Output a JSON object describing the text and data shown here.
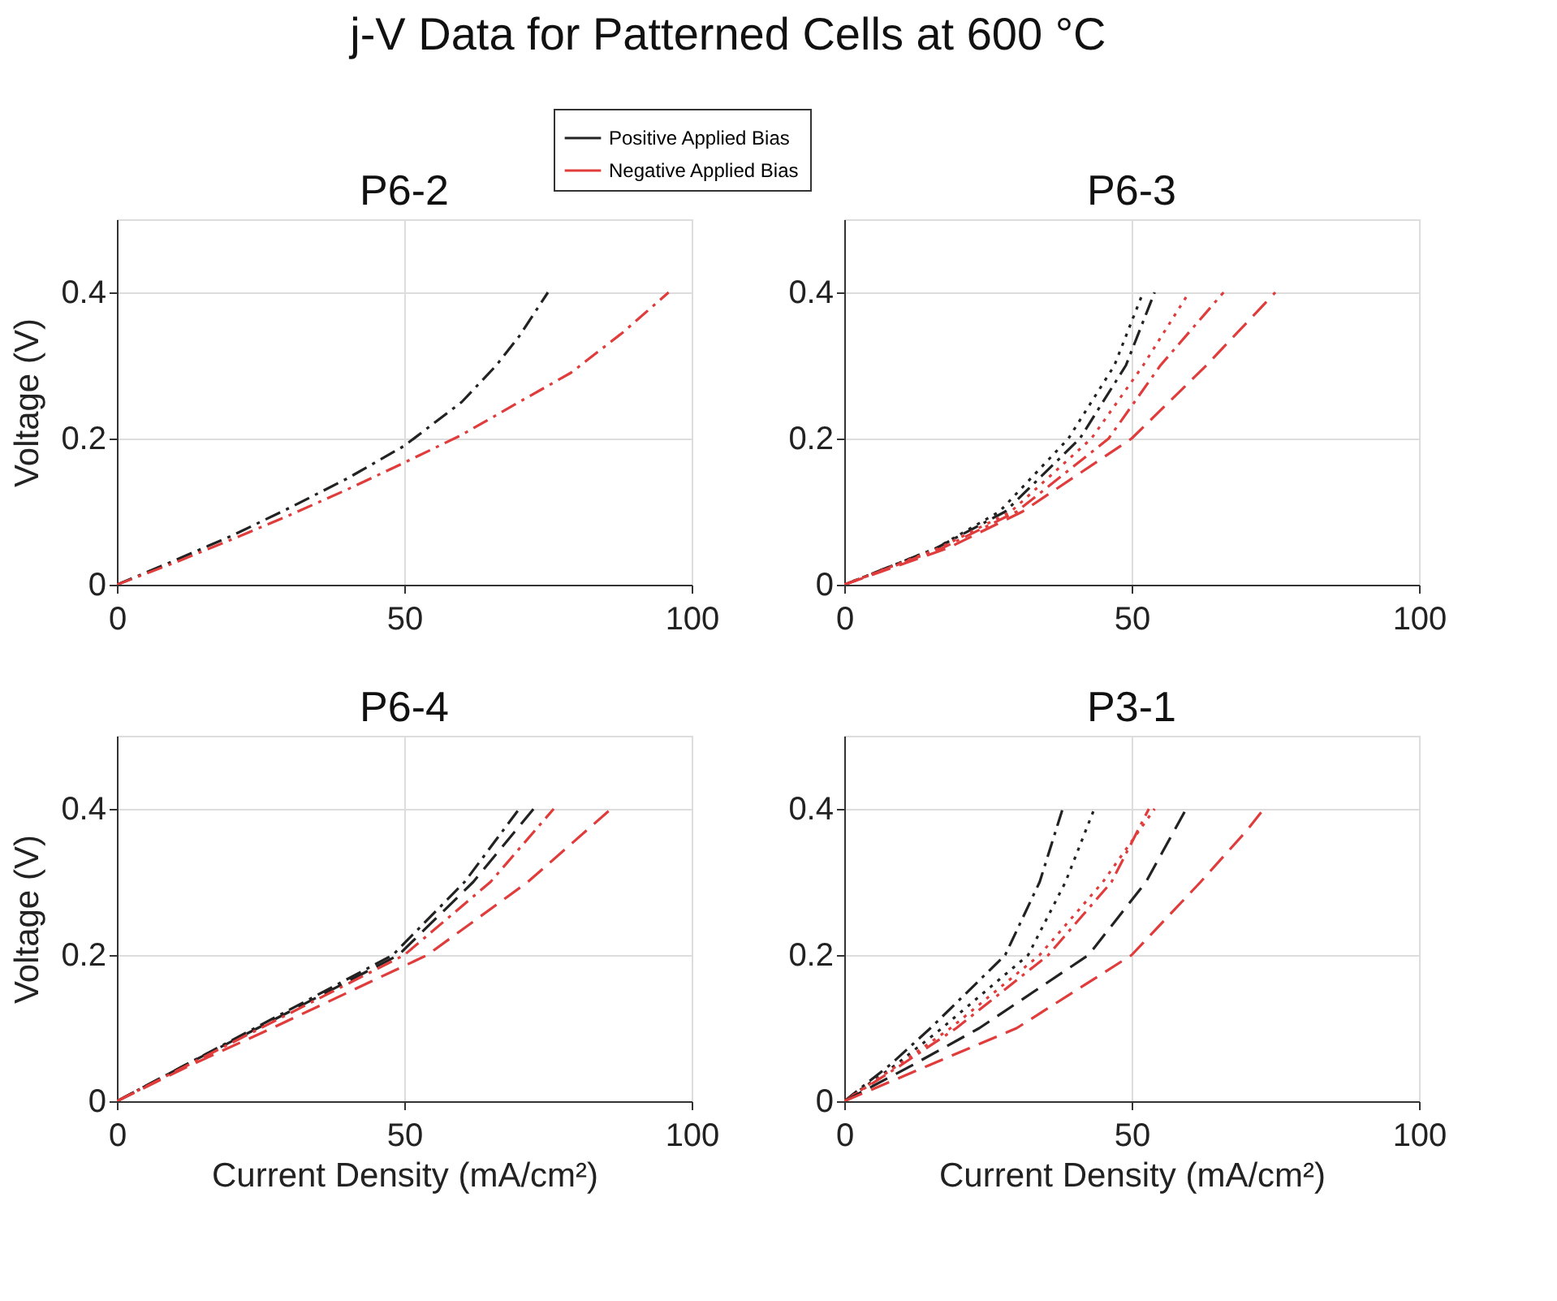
{
  "chart_data": [
    {
      "type": "line",
      "title": "P6-2",
      "ylabel": "Voltage (V)",
      "annotations": [
        "j-V Data for Patterned Cells at 600 °C"
      ],
      "xlim": [
        0,
        100
      ],
      "ylim": [
        0,
        0.5
      ],
      "xticks": [
        0,
        50,
        100
      ],
      "yticks": [
        0,
        0.2,
        0.4
      ],
      "grid": true,
      "legend": "top",
      "series": [
        {
          "name": "Positive Applied Bias",
          "color": "#222222",
          "line_style": "dashdot",
          "x": [
            0,
            10,
            20,
            30,
            40,
            50,
            60,
            66,
            70,
            75
          ],
          "values": [
            0,
            0.033,
            0.067,
            0.105,
            0.145,
            0.19,
            0.25,
            0.3,
            0.34,
            0.4
          ]
        },
        {
          "name": "Negative Applied Bias",
          "color": "#e03c3c",
          "line_style": "dashdot",
          "x": [
            0,
            10,
            20,
            30,
            40,
            50,
            60,
            70,
            79,
            88,
            96
          ],
          "values": [
            0,
            0.03,
            0.062,
            0.095,
            0.13,
            0.167,
            0.205,
            0.25,
            0.29,
            0.345,
            0.4
          ]
        }
      ]
    },
    {
      "type": "line",
      "title": "P6-3",
      "xlim": [
        0,
        100
      ],
      "ylim": [
        0,
        0.5
      ],
      "xticks": [
        0,
        50,
        100
      ],
      "yticks": [
        0,
        0.2,
        0.4
      ],
      "grid": true,
      "series": [
        {
          "color": "#222222",
          "line_style": "dotted",
          "x": [
            0,
            16,
            27,
            39,
            47,
            52
          ],
          "values": [
            0,
            0.05,
            0.1,
            0.2,
            0.3,
            0.4
          ]
        },
        {
          "color": "#222222",
          "line_style": "dashdot",
          "x": [
            0,
            16,
            28,
            41,
            49,
            54
          ],
          "values": [
            0,
            0.05,
            0.1,
            0.2,
            0.3,
            0.4
          ]
        },
        {
          "color": "#e03c3c",
          "line_style": "dotted",
          "x": [
            0,
            16.5,
            29,
            43,
            52,
            60
          ],
          "values": [
            0,
            0.05,
            0.1,
            0.2,
            0.3,
            0.4
          ]
        },
        {
          "color": "#e03c3c",
          "line_style": "dashdot",
          "x": [
            0,
            17,
            30,
            46,
            55,
            66
          ],
          "values": [
            0,
            0.05,
            0.1,
            0.2,
            0.3,
            0.4
          ]
        },
        {
          "color": "#e03c3c",
          "line_style": "dashed",
          "x": [
            0,
            18,
            31,
            50,
            63,
            75
          ],
          "values": [
            0,
            0.05,
            0.1,
            0.2,
            0.3,
            0.4
          ]
        }
      ]
    },
    {
      "type": "line",
      "title": "P6-4",
      "xlabel": "Current Density (mA/cm²)",
      "ylabel": "Voltage (V)",
      "xlim": [
        0,
        100
      ],
      "ylim": [
        0,
        0.5
      ],
      "xticks": [
        0,
        50,
        100
      ],
      "yticks": [
        0,
        0.2,
        0.4
      ],
      "grid": true,
      "series": [
        {
          "color": "#222222",
          "line_style": "dashdot",
          "x": [
            0,
            12,
            24,
            48,
            60.5,
            70
          ],
          "values": [
            0,
            0.05,
            0.1,
            0.2,
            0.3,
            0.4
          ]
        },
        {
          "color": "#222222",
          "line_style": "dashed",
          "x": [
            0,
            12,
            24.5,
            49,
            62,
            72.5
          ],
          "values": [
            0,
            0.05,
            0.1,
            0.2,
            0.3,
            0.4
          ]
        },
        {
          "color": "#e03c3c",
          "line_style": "dashdot",
          "x": [
            0,
            12.5,
            25,
            50,
            65,
            76
          ],
          "values": [
            0,
            0.05,
            0.1,
            0.2,
            0.3,
            0.4
          ]
        },
        {
          "color": "#e03c3c",
          "line_style": "dashed",
          "x": [
            0,
            13,
            27,
            54,
            71.5,
            86
          ],
          "values": [
            0,
            0.05,
            0.1,
            0.2,
            0.3,
            0.4
          ]
        }
      ]
    },
    {
      "type": "line",
      "title": "P3-1",
      "xlabel": "Current Density (mA/cm²)",
      "xlim": [
        0,
        100
      ],
      "ylim": [
        0,
        0.5
      ],
      "xticks": [
        0,
        50,
        100
      ],
      "yticks": [
        0,
        0.2,
        0.4
      ],
      "grid": true,
      "series": [
        {
          "color": "#222222",
          "line_style": "dashdot",
          "x": [
            0,
            8,
            15,
            28,
            34,
            38
          ],
          "values": [
            0,
            0.05,
            0.1,
            0.2,
            0.3,
            0.4
          ]
        },
        {
          "color": "#222222",
          "line_style": "dotted",
          "x": [
            0,
            9,
            17,
            32,
            38.5,
            43.5
          ],
          "values": [
            0,
            0.05,
            0.1,
            0.2,
            0.3,
            0.4
          ]
        },
        {
          "color": "#e03c3c",
          "line_style": "dotted",
          "x": [
            0,
            9.5,
            18.5,
            34,
            45,
            54
          ],
          "values": [
            0,
            0.05,
            0.1,
            0.2,
            0.3,
            0.4
          ]
        },
        {
          "color": "#e03c3c",
          "line_style": "dashdot",
          "x": [
            0,
            10,
            19.5,
            35.5,
            46.5,
            53
          ],
          "values": [
            0,
            0.05,
            0.1,
            0.2,
            0.3,
            0.4
          ]
        },
        {
          "color": "#222222",
          "line_style": "dashed",
          "x": [
            0,
            12,
            23.5,
            42.5,
            52.5,
            59.5
          ],
          "values": [
            0,
            0.05,
            0.1,
            0.2,
            0.3,
            0.4
          ]
        },
        {
          "color": "#e03c3c",
          "line_style": "dashed",
          "x": [
            0,
            15,
            30,
            50,
            62,
            70,
            73
          ],
          "values": [
            0,
            0.05,
            0.1,
            0.2,
            0.3,
            0.37,
            0.4
          ]
        }
      ]
    }
  ]
}
